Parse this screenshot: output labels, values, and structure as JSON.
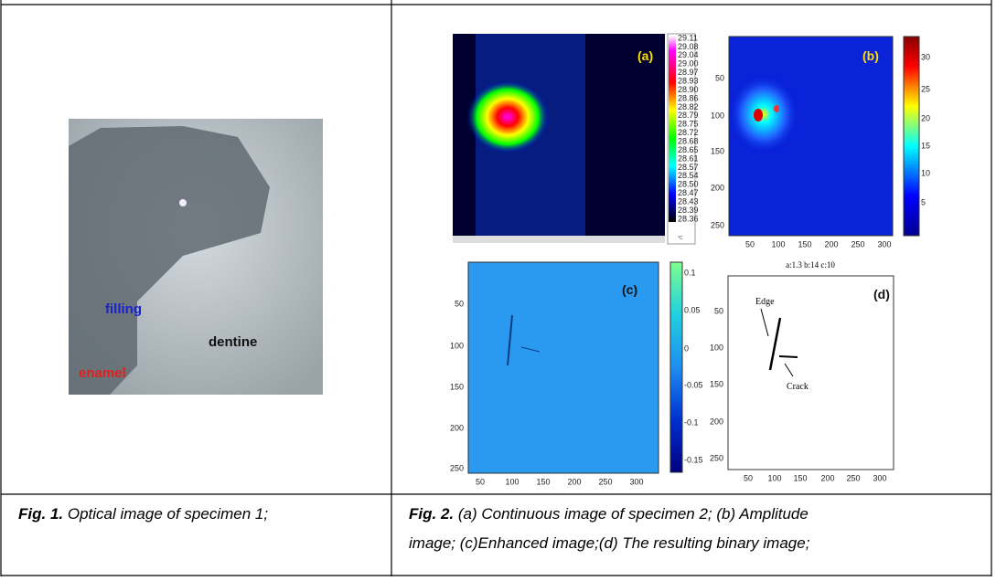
{
  "figure1": {
    "labels": {
      "filling": "filling",
      "dentine": "dentine",
      "enamel": "enamel"
    },
    "caption": {
      "label": "Fig. 1.",
      "text": " Optical image of specimen 1;"
    }
  },
  "figure2": {
    "panels": {
      "a": {
        "label": "(a)",
        "colorbar_ticks": [
          "29.11",
          "29.08",
          "29.04",
          "29.00",
          "28.97",
          "28.93",
          "28.90",
          "28.86",
          "28.82",
          "28.79",
          "28.75",
          "28.72",
          "28.68",
          "28.65",
          "28.61",
          "28.57",
          "28.54",
          "28.50",
          "28.47",
          "28.43",
          "28.39",
          "28.36"
        ],
        "unit": "°C"
      },
      "b": {
        "label": "(b)",
        "yticks": [
          "50",
          "100",
          "150",
          "200",
          "250"
        ],
        "xticks": [
          "50",
          "100",
          "150",
          "200",
          "250",
          "300"
        ],
        "colorbar_ticks": [
          "30",
          "25",
          "20",
          "15",
          "10",
          "5"
        ]
      },
      "c": {
        "label": "(c)",
        "yticks": [
          "50",
          "100",
          "150",
          "200",
          "250"
        ],
        "xticks": [
          "50",
          "100",
          "150",
          "200",
          "250",
          "300"
        ],
        "colorbar_ticks": [
          "0.1",
          "0.05",
          "0",
          "-0.05",
          "-0.1",
          "-0.15"
        ]
      },
      "d": {
        "label": "(d)",
        "title": "a:1.3  b:14  c:10",
        "edge": "Edge",
        "crack": "Crack",
        "yticks": [
          "50",
          "100",
          "150",
          "200",
          "250"
        ],
        "xticks": [
          "50",
          "100",
          "150",
          "200",
          "250",
          "300"
        ]
      }
    },
    "caption": {
      "label": "Fig. 2.",
      "lines": [
        " (a) Continuous image of specimen 2; (b) Amplitude",
        "image; (c)Enhanced image;(d) The resulting binary image;"
      ]
    }
  }
}
